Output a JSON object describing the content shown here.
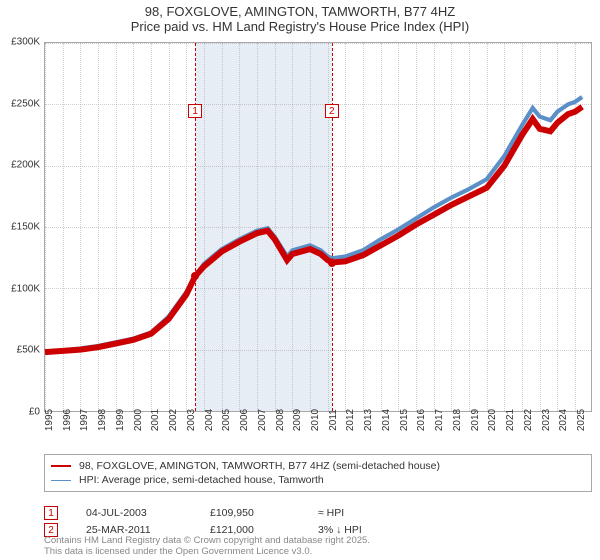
{
  "title_line1": "98, FOXGLOVE, AMINGTON, TAMWORTH, B77 4HZ",
  "title_line2": "Price paid vs. HM Land Registry's House Price Index (HPI)",
  "chart": {
    "type": "line",
    "background_color": "#ffffff",
    "grid_color": "rgba(150,150,150,.45)",
    "border_color": "#a8a8a8",
    "y": {
      "min": 0,
      "max": 300000,
      "step": 50000,
      "labels": [
        "£0",
        "£50K",
        "£100K",
        "£150K",
        "£200K",
        "£250K",
        "£300K"
      ]
    },
    "x": {
      "min": 1995,
      "max": 2025.9,
      "step": 1,
      "labels": [
        "1995",
        "1996",
        "1997",
        "1998",
        "1999",
        "2000",
        "2001",
        "2002",
        "2003",
        "2004",
        "2005",
        "2006",
        "2007",
        "2008",
        "2009",
        "2010",
        "2011",
        "2012",
        "2013",
        "2014",
        "2015",
        "2016",
        "2017",
        "2018",
        "2019",
        "2020",
        "2021",
        "2022",
        "2023",
        "2024",
        "2025"
      ]
    },
    "shade": {
      "from_year": 2003.5,
      "to_year": 2011.23,
      "color": "#e6edf5"
    },
    "series": [
      {
        "name": "price_paid",
        "color": "#cc0000",
        "line_width": 2,
        "points": [
          [
            1995,
            48000
          ],
          [
            1996,
            49000
          ],
          [
            1997,
            50000
          ],
          [
            1998,
            52000
          ],
          [
            1999,
            55000
          ],
          [
            2000,
            58000
          ],
          [
            2001,
            63000
          ],
          [
            2002,
            75000
          ],
          [
            2003,
            95000
          ],
          [
            2003.5,
            109950
          ],
          [
            2004,
            118000
          ],
          [
            2005,
            130000
          ],
          [
            2006,
            138000
          ],
          [
            2007,
            145000
          ],
          [
            2007.6,
            147000
          ],
          [
            2008,
            140000
          ],
          [
            2008.7,
            123000
          ],
          [
            2009,
            128000
          ],
          [
            2010,
            132000
          ],
          [
            2010.6,
            128000
          ],
          [
            2011.0,
            123000
          ],
          [
            2011.23,
            121000
          ],
          [
            2012,
            122000
          ],
          [
            2013,
            127000
          ],
          [
            2014,
            135000
          ],
          [
            2015,
            143000
          ],
          [
            2016,
            152000
          ],
          [
            2017,
            160000
          ],
          [
            2018,
            168000
          ],
          [
            2019,
            175000
          ],
          [
            2020,
            182000
          ],
          [
            2021,
            200000
          ],
          [
            2022,
            225000
          ],
          [
            2022.6,
            238000
          ],
          [
            2023,
            230000
          ],
          [
            2023.6,
            228000
          ],
          [
            2024,
            235000
          ],
          [
            2024.6,
            242000
          ],
          [
            2025,
            244000
          ],
          [
            2025.4,
            248000
          ]
        ]
      },
      {
        "name": "hpi",
        "color": "#5b8fc7",
        "line_width": 1.4,
        "points": [
          [
            1995,
            48000
          ],
          [
            1996,
            49500
          ],
          [
            1997,
            51000
          ],
          [
            1998,
            53000
          ],
          [
            1999,
            56000
          ],
          [
            2000,
            59000
          ],
          [
            2001,
            64000
          ],
          [
            2002,
            77000
          ],
          [
            2003,
            97000
          ],
          [
            2003.5,
            110000
          ],
          [
            2004,
            120000
          ],
          [
            2005,
            132000
          ],
          [
            2006,
            140000
          ],
          [
            2007,
            147000
          ],
          [
            2007.6,
            149000
          ],
          [
            2008,
            142000
          ],
          [
            2008.7,
            126000
          ],
          [
            2009,
            131000
          ],
          [
            2010,
            135000
          ],
          [
            2010.6,
            131000
          ],
          [
            2011.0,
            126000
          ],
          [
            2011.23,
            124500
          ],
          [
            2012,
            126000
          ],
          [
            2013,
            131000
          ],
          [
            2014,
            140000
          ],
          [
            2015,
            148000
          ],
          [
            2016,
            157000
          ],
          [
            2017,
            166000
          ],
          [
            2018,
            174000
          ],
          [
            2019,
            181000
          ],
          [
            2020,
            189000
          ],
          [
            2021,
            208000
          ],
          [
            2022,
            233000
          ],
          [
            2022.6,
            247000
          ],
          [
            2023,
            240000
          ],
          [
            2023.6,
            237000
          ],
          [
            2024,
            244000
          ],
          [
            2024.6,
            250000
          ],
          [
            2025,
            252000
          ],
          [
            2025.4,
            256000
          ]
        ]
      }
    ],
    "sale_markers": [
      {
        "n": "1",
        "year": 2003.5,
        "value": 109950,
        "flag_y": 250000
      },
      {
        "n": "2",
        "year": 2011.23,
        "value": 121000,
        "flag_y": 250000
      }
    ],
    "marker_fill": "#cc0000",
    "marker_size": 8
  },
  "legend": {
    "items": [
      {
        "color": "#cc0000",
        "width": 2,
        "label": "98, FOXGLOVE, AMINGTON, TAMWORTH, B77 4HZ (semi-detached house)"
      },
      {
        "color": "#5b8fc7",
        "width": 1.4,
        "label": "HPI: Average price, semi-detached house, Tamworth"
      }
    ]
  },
  "sales": [
    {
      "n": "1",
      "date": "04-JUL-2003",
      "price": "£109,950",
      "delta": "≈ HPI"
    },
    {
      "n": "2",
      "date": "25-MAR-2011",
      "price": "£121,000",
      "delta": "3% ↓ HPI"
    }
  ],
  "credit_line1": "Contains HM Land Registry data © Crown copyright and database right 2025.",
  "credit_line2": "This data is licensed under the Open Government Licence v3.0."
}
